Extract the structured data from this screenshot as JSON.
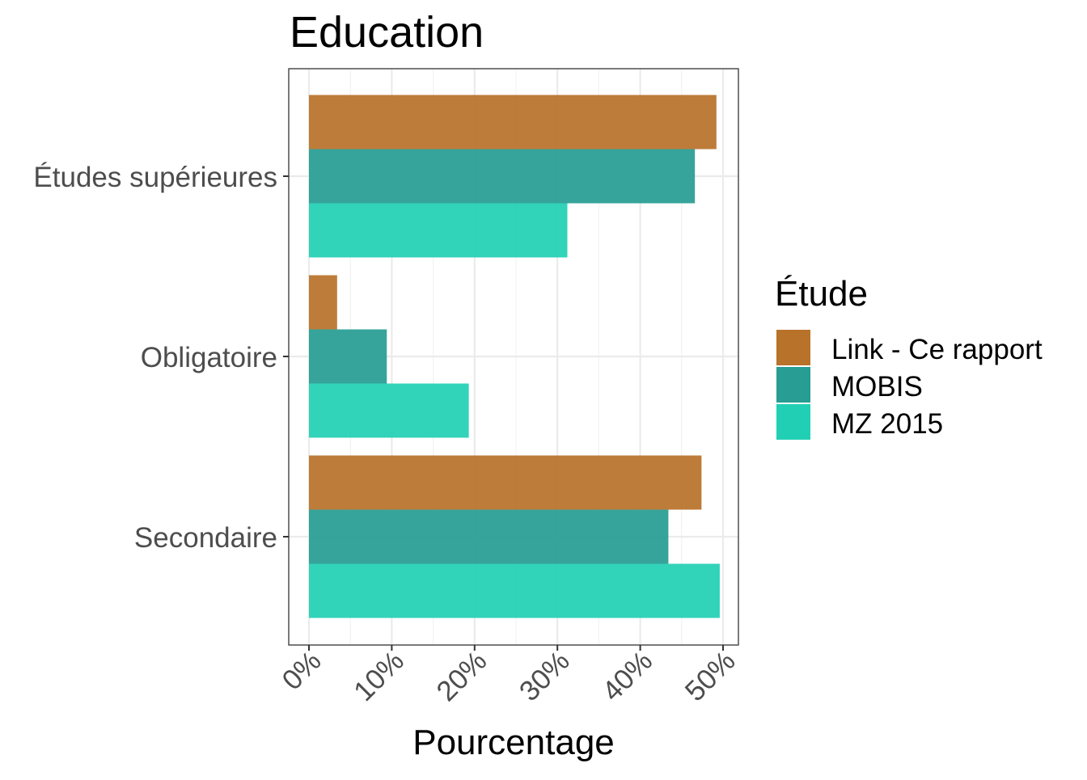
{
  "chart_data": {
    "type": "bar",
    "orientation": "horizontal",
    "title": "Education",
    "xlabel": "Pourcentage",
    "ylabel": "",
    "xlim": [
      0,
      0.52
    ],
    "x_ticks": [
      0,
      0.1,
      0.2,
      0.3,
      0.4,
      0.5
    ],
    "x_tick_labels": [
      "0%",
      "10%",
      "20%",
      "30%",
      "40%",
      "50%"
    ],
    "categories": [
      "Études supérieures",
      "Obligatoire",
      "Secondaire"
    ],
    "legend_title": "Étude",
    "legend_position": "right",
    "grid": true,
    "series": [
      {
        "name": "Link - Ce rapport",
        "color": "#B8722A",
        "values": [
          0.492,
          0.034,
          0.474
        ]
      },
      {
        "name": "MOBIS",
        "color": "#279D93",
        "values": [
          0.466,
          0.094,
          0.434
        ]
      },
      {
        "name": "MZ 2015",
        "color": "#21D0B4",
        "values": [
          0.312,
          0.193,
          0.496
        ]
      }
    ]
  }
}
